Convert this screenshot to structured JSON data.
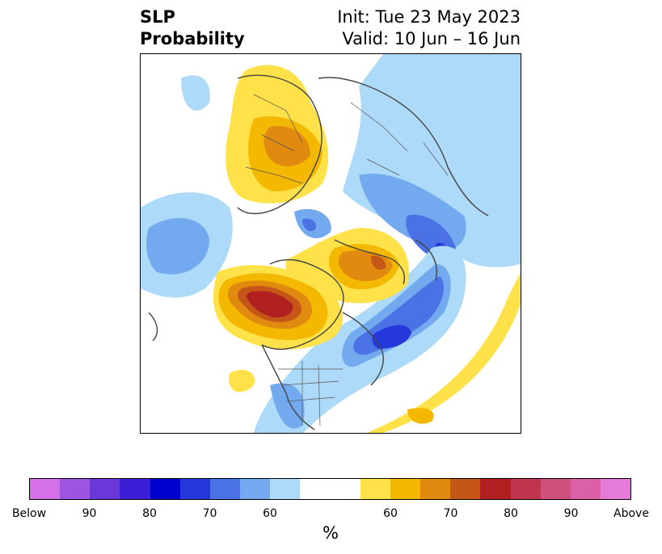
{
  "title": {
    "left_line1": "SLP",
    "left_line2": "Probability",
    "right_line1": "Init: Tue 23 May 2023",
    "right_line2": "Valid: 10 Jun – 16 Jun"
  },
  "map": {
    "projection": "north polar stereographic",
    "features": [
      {
        "name": "positive-anomaly-north-america",
        "category": "Above",
        "peak_probability": 80
      },
      {
        "name": "positive-anomaly-arctic",
        "category": "Above",
        "peak_probability": 70
      },
      {
        "name": "positive-anomaly-europe",
        "category": "Above",
        "peak_probability": 70
      },
      {
        "name": "negative-anomaly-north-atlantic",
        "category": "Below",
        "peak_probability": 80
      },
      {
        "name": "negative-anomaly-siberia",
        "category": "Below",
        "peak_probability": 70
      },
      {
        "name": "negative-anomaly-north-pacific",
        "category": "Below",
        "peak_probability": 60
      }
    ]
  },
  "colorbar": {
    "colors": [
      "#d670e6",
      "#9b55e0",
      "#6a38d9",
      "#3a1fd6",
      "#0000cd",
      "#2438dc",
      "#4a72e5",
      "#72a9ef",
      "#acdaf8",
      "#ffffff",
      "#ffffff",
      "#ffe14a",
      "#f5b800",
      "#e08a10",
      "#c55618",
      "#b02020",
      "#c0344e",
      "#cf4f7d",
      "#db60a8",
      "#e67ad9"
    ],
    "tick_labels": [
      "Below",
      "90",
      "80",
      "70",
      "60",
      "60",
      "70",
      "80",
      "90",
      "Above"
    ],
    "unit": "%"
  }
}
